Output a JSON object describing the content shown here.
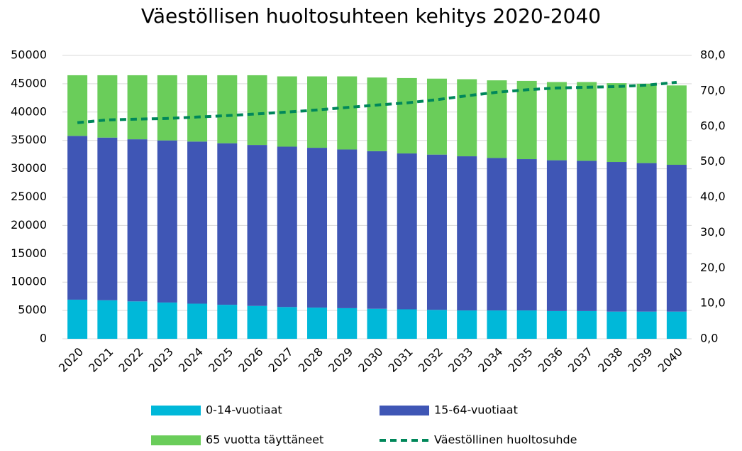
{
  "chart_data": {
    "type": "bar",
    "stacked": true,
    "title": "Väestöllisen huoltosuhteen kehitys 2020-2040",
    "categories": [
      "2020",
      "2021",
      "2022",
      "2023",
      "2024",
      "2025",
      "2026",
      "2027",
      "2028",
      "2029",
      "2030",
      "2031",
      "2032",
      "2033",
      "2034",
      "2035",
      "2036",
      "2037",
      "2038",
      "2039",
      "2040"
    ],
    "series": [
      {
        "name": "0-14-vuotiaat",
        "color": "#00b8d9",
        "values": [
          6900,
          6800,
          6600,
          6400,
          6200,
          6000,
          5800,
          5600,
          5500,
          5400,
          5300,
          5200,
          5100,
          5000,
          5000,
          5000,
          4900,
          4900,
          4800,
          4800,
          4800
        ]
      },
      {
        "name": "15-64-vuotiaat",
        "color": "#3f56b5",
        "values": [
          28900,
          28700,
          28600,
          28600,
          28600,
          28500,
          28400,
          28300,
          28200,
          28000,
          27800,
          27500,
          27400,
          27200,
          26900,
          26700,
          26600,
          26500,
          26400,
          26200,
          25900
        ]
      },
      {
        "name": "65 vuotta täyttäneet",
        "color": "#6acd5a",
        "values": [
          10700,
          11000,
          11300,
          11500,
          11700,
          12000,
          12300,
          12400,
          12600,
          12900,
          13000,
          13300,
          13400,
          13600,
          13700,
          13800,
          13800,
          13900,
          13900,
          14000,
          14000
        ]
      },
      {
        "name": "Väestöllinen huoltosuhde",
        "color": "#00875a",
        "type": "line",
        "axis": "y2",
        "dashed": true,
        "values": [
          61.0,
          61.8,
          62.0,
          62.2,
          62.6,
          63.0,
          63.5,
          64.0,
          64.6,
          65.3,
          66.0,
          66.6,
          67.5,
          68.6,
          69.6,
          70.3,
          70.8,
          71.0,
          71.2,
          71.6,
          72.4
        ]
      }
    ],
    "ylim": [
      0,
      50000
    ],
    "yticks": [
      0,
      5000,
      10000,
      15000,
      20000,
      25000,
      30000,
      35000,
      40000,
      45000,
      50000
    ],
    "y2lim": [
      0,
      80
    ],
    "y2ticks": [
      {
        "value": 0,
        "label": "0,0"
      },
      {
        "value": 10,
        "label": "10,0"
      },
      {
        "value": 20,
        "label": "20,0"
      },
      {
        "value": 30,
        "label": "30,0"
      },
      {
        "value": 40,
        "label": "40,0"
      },
      {
        "value": 50,
        "label": "50,0"
      },
      {
        "value": 60,
        "label": "60,0"
      },
      {
        "value": 70,
        "label": "70,0"
      },
      {
        "value": 80,
        "label": "80,0"
      }
    ],
    "grid": true,
    "legend": "bottom"
  }
}
